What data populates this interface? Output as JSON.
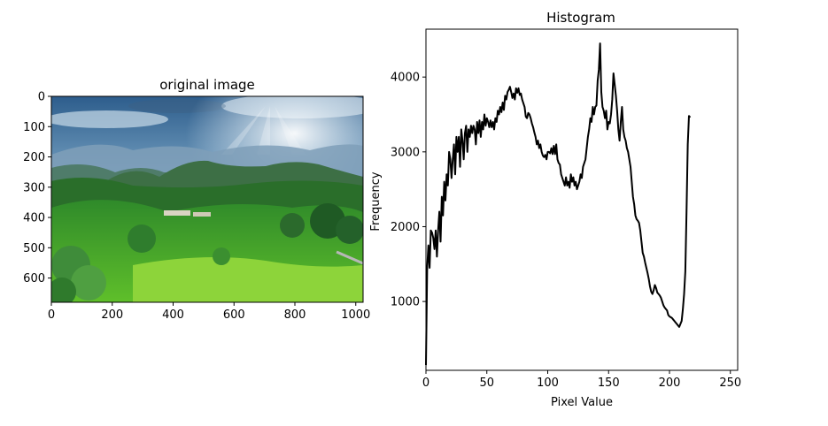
{
  "chart_data": [
    {
      "type": "image",
      "title": "original image",
      "xlabel": "",
      "ylabel": "",
      "xlim": [
        0,
        1024
      ],
      "ylim": [
        680,
        0
      ],
      "xticks": [
        0,
        200,
        400,
        600,
        800,
        1000
      ],
      "yticks": [
        0,
        100,
        200,
        300,
        400,
        500,
        600
      ],
      "image_content": "landscape photo: green terraced hills, mountains, sun rays through clouds"
    },
    {
      "type": "line",
      "title": "Histogram",
      "xlabel": "Pixel Value",
      "ylabel": "Frequency",
      "xlim": [
        0,
        256
      ],
      "ylim": [
        80,
        4640
      ],
      "xticks": [
        0,
        50,
        100,
        150,
        200,
        250
      ],
      "yticks": [
        1000,
        2000,
        3000,
        4000
      ],
      "grid": false,
      "series": [
        {
          "color": "#000000",
          "points": [
            [
              0,
              150
            ],
            [
              1,
              1450
            ],
            [
              2,
              1750
            ],
            [
              3,
              1450
            ],
            [
              4,
              1950
            ],
            [
              5,
              1920
            ],
            [
              6,
              1850
            ],
            [
              7,
              1700
            ],
            [
              8,
              1950
            ],
            [
              9,
              1600
            ],
            [
              10,
              1950
            ],
            [
              11,
              2200
            ],
            [
              12,
              1800
            ],
            [
              13,
              2400
            ],
            [
              14,
              2150
            ],
            [
              15,
              2600
            ],
            [
              16,
              2350
            ],
            [
              17,
              2700
            ],
            [
              18,
              2550
            ],
            [
              19,
              3000
            ],
            [
              20,
              2900
            ],
            [
              21,
              2650
            ],
            [
              22,
              2900
            ],
            [
              23,
              3100
            ],
            [
              24,
              2700
            ],
            [
              25,
              3200
            ],
            [
              26,
              3000
            ],
            [
              27,
              3200
            ],
            [
              28,
              2800
            ],
            [
              29,
              3300
            ],
            [
              30,
              3150
            ],
            [
              31,
              2900
            ],
            [
              32,
              3250
            ],
            [
              33,
              3350
            ],
            [
              34,
              3000
            ],
            [
              35,
              3300
            ],
            [
              36,
              3200
            ],
            [
              37,
              3350
            ],
            [
              38,
              3250
            ],
            [
              39,
              3350
            ],
            [
              40,
              3300
            ],
            [
              41,
              3100
            ],
            [
              42,
              3400
            ],
            [
              43,
              3250
            ],
            [
              44,
              3420
            ],
            [
              45,
              3200
            ],
            [
              46,
              3400
            ],
            [
              47,
              3300
            ],
            [
              48,
              3500
            ],
            [
              49,
              3350
            ],
            [
              50,
              3450
            ],
            [
              51,
              3400
            ],
            [
              52,
              3330
            ],
            [
              53,
              3420
            ],
            [
              54,
              3330
            ],
            [
              55,
              3400
            ],
            [
              56,
              3300
            ],
            [
              57,
              3450
            ],
            [
              58,
              3400
            ],
            [
              59,
              3550
            ],
            [
              60,
              3500
            ],
            [
              61,
              3600
            ],
            [
              62,
              3530
            ],
            [
              63,
              3660
            ],
            [
              64,
              3560
            ],
            [
              65,
              3750
            ],
            [
              66,
              3700
            ],
            [
              67,
              3800
            ],
            [
              68,
              3830
            ],
            [
              69,
              3870
            ],
            [
              70,
              3800
            ],
            [
              71,
              3720
            ],
            [
              72,
              3780
            ],
            [
              73,
              3700
            ],
            [
              74,
              3850
            ],
            [
              75,
              3790
            ],
            [
              76,
              3850
            ],
            [
              77,
              3760
            ],
            [
              78,
              3780
            ],
            [
              79,
              3700
            ],
            [
              80,
              3650
            ],
            [
              81,
              3600
            ],
            [
              82,
              3470
            ],
            [
              83,
              3450
            ],
            [
              84,
              3520
            ],
            [
              85,
              3500
            ],
            [
              86,
              3450
            ],
            [
              87,
              3380
            ],
            [
              88,
              3330
            ],
            [
              89,
              3260
            ],
            [
              90,
              3200
            ],
            [
              91,
              3100
            ],
            [
              92,
              3150
            ],
            [
              93,
              3050
            ],
            [
              94,
              3100
            ],
            [
              95,
              3000
            ],
            [
              96,
              2950
            ],
            [
              97,
              2930
            ],
            [
              98,
              2960
            ],
            [
              99,
              2900
            ],
            [
              100,
              3000
            ],
            [
              101,
              3000
            ],
            [
              102,
              2980
            ],
            [
              103,
              3050
            ],
            [
              104,
              2970
            ],
            [
              105,
              3080
            ],
            [
              106,
              2970
            ],
            [
              107,
              3100
            ],
            [
              108,
              2900
            ],
            [
              109,
              2850
            ],
            [
              110,
              2830
            ],
            [
              111,
              2700
            ],
            [
              112,
              2650
            ],
            [
              113,
              2600
            ],
            [
              114,
              2550
            ],
            [
              115,
              2660
            ],
            [
              116,
              2550
            ],
            [
              117,
              2600
            ],
            [
              118,
              2520
            ],
            [
              119,
              2700
            ],
            [
              120,
              2600
            ],
            [
              121,
              2660
            ],
            [
              122,
              2550
            ],
            [
              123,
              2600
            ],
            [
              124,
              2500
            ],
            [
              125,
              2550
            ],
            [
              126,
              2600
            ],
            [
              127,
              2700
            ],
            [
              128,
              2650
            ],
            [
              129,
              2800
            ],
            [
              130,
              2850
            ],
            [
              131,
              2900
            ],
            [
              132,
              3050
            ],
            [
              133,
              3200
            ],
            [
              134,
              3300
            ],
            [
              135,
              3450
            ],
            [
              136,
              3400
            ],
            [
              137,
              3600
            ],
            [
              138,
              3500
            ],
            [
              139,
              3600
            ],
            [
              140,
              3620
            ],
            [
              141,
              3950
            ],
            [
              142,
              4100
            ],
            [
              143,
              4450
            ],
            [
              144,
              3800
            ],
            [
              145,
              3600
            ],
            [
              146,
              3550
            ],
            [
              147,
              3450
            ],
            [
              148,
              3550
            ],
            [
              149,
              3300
            ],
            [
              150,
              3400
            ],
            [
              151,
              3380
            ],
            [
              152,
              3500
            ],
            [
              153,
              3700
            ],
            [
              154,
              4050
            ],
            [
              155,
              3900
            ],
            [
              156,
              3750
            ],
            [
              157,
              3550
            ],
            [
              158,
              3300
            ],
            [
              159,
              3150
            ],
            [
              160,
              3400
            ],
            [
              161,
              3600
            ],
            [
              162,
              3300
            ],
            [
              163,
              3200
            ],
            [
              164,
              3150
            ],
            [
              165,
              3050
            ],
            [
              166,
              3000
            ],
            [
              167,
              2900
            ],
            [
              168,
              2800
            ],
            [
              169,
              2600
            ],
            [
              170,
              2400
            ],
            [
              171,
              2300
            ],
            [
              172,
              2150
            ],
            [
              173,
              2100
            ],
            [
              174,
              2080
            ],
            [
              175,
              2050
            ],
            [
              176,
              1950
            ],
            [
              177,
              1800
            ],
            [
              178,
              1650
            ],
            [
              179,
              1600
            ],
            [
              180,
              1520
            ],
            [
              181,
              1450
            ],
            [
              182,
              1380
            ],
            [
              183,
              1300
            ],
            [
              184,
              1200
            ],
            [
              185,
              1130
            ],
            [
              186,
              1100
            ],
            [
              187,
              1150
            ],
            [
              188,
              1220
            ],
            [
              189,
              1180
            ],
            [
              190,
              1120
            ],
            [
              191,
              1100
            ],
            [
              192,
              1080
            ],
            [
              193,
              1050
            ],
            [
              194,
              1000
            ],
            [
              195,
              950
            ],
            [
              196,
              920
            ],
            [
              197,
              900
            ],
            [
              198,
              880
            ],
            [
              199,
              820
            ],
            [
              200,
              800
            ],
            [
              201,
              790
            ],
            [
              202,
              780
            ],
            [
              203,
              760
            ],
            [
              204,
              740
            ],
            [
              205,
              720
            ],
            [
              206,
              700
            ],
            [
              207,
              680
            ],
            [
              208,
              660
            ],
            [
              209,
              700
            ],
            [
              210,
              740
            ],
            [
              211,
              900
            ],
            [
              212,
              1100
            ],
            [
              213,
              1400
            ],
            [
              214,
              2200
            ],
            [
              215,
              3100
            ],
            [
              216,
              3480
            ],
            [
              217,
              3460
            ]
          ]
        }
      ]
    }
  ]
}
